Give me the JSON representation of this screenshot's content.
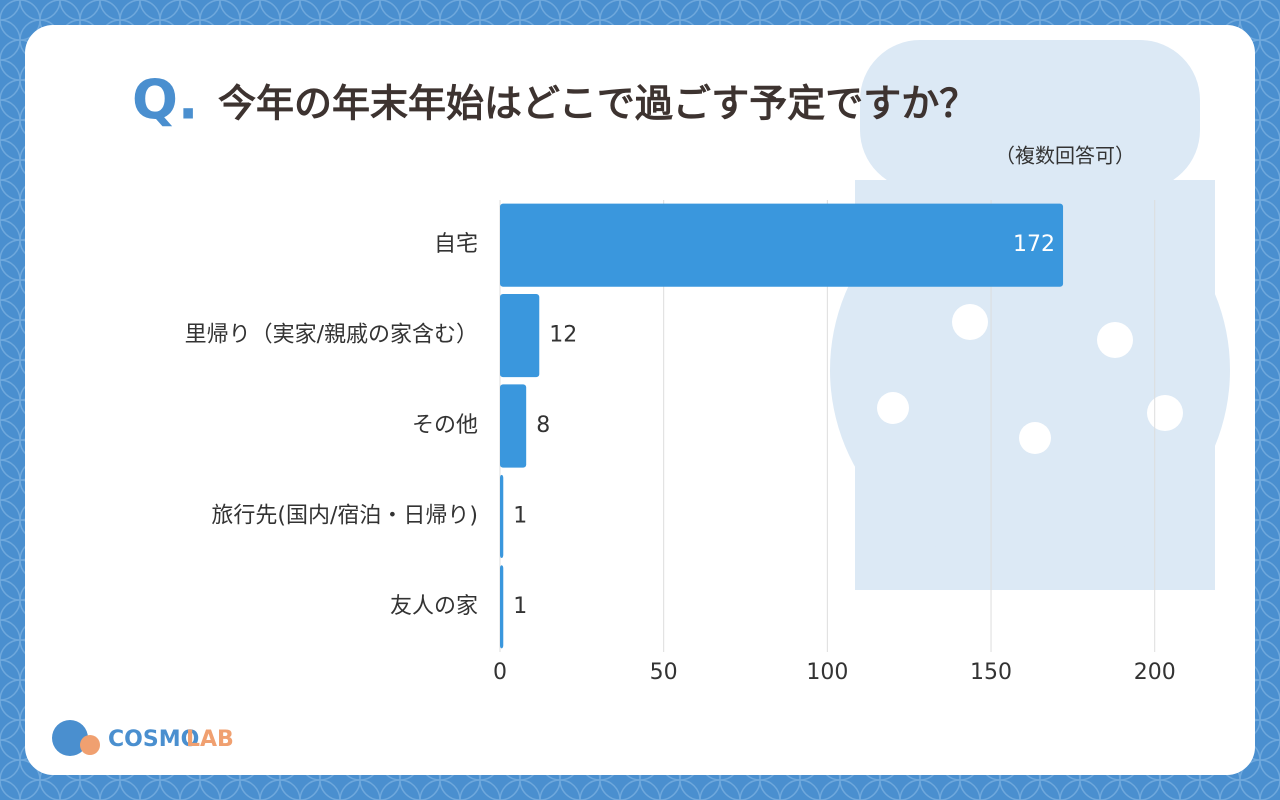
{
  "chart_data": {
    "type": "hbar",
    "title_prefix": "Q.",
    "title": "今年の年末年始はどこで過ごす予定ですか？",
    "subtitle": "（複数回答可）",
    "categories": [
      "自宅",
      "里帰り（実家/親戚の家含む）",
      "その他",
      "旅行先(国内/宿泊・日帰り)",
      "友人の家"
    ],
    "values": [
      172,
      12,
      8,
      1,
      1
    ],
    "color": "#3a97dd",
    "xlim": [
      0,
      223
    ],
    "xticks": [
      0,
      50,
      100,
      150,
      200
    ],
    "grid": true
  },
  "brand": {
    "name": "COSMO",
    "suffix": "LAB"
  }
}
